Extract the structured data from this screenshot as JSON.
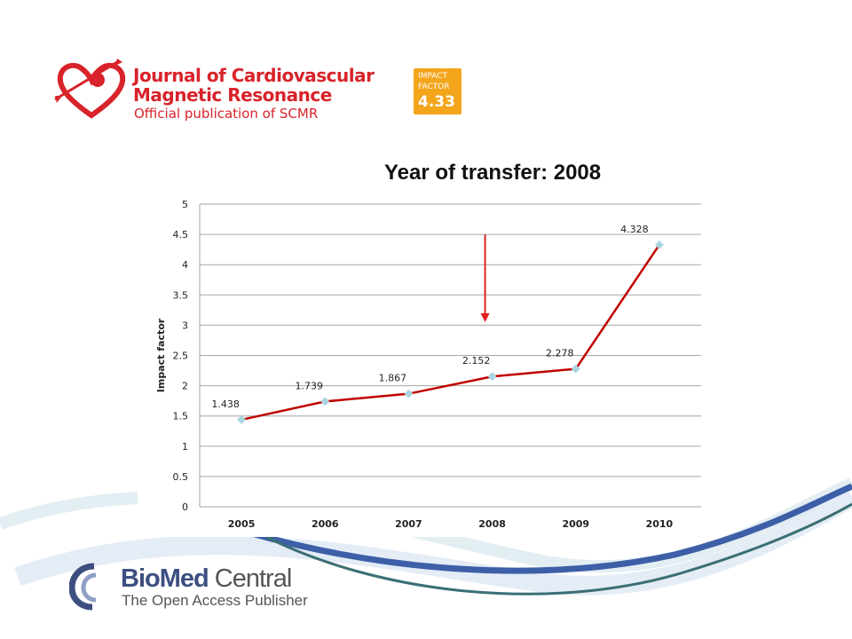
{
  "header": {
    "journal_line1": "Journal of Cardiovascular",
    "journal_line2": "Magnetic Resonance",
    "journal_subtitle": "Official publication of SCMR",
    "impact_badge_line1": "IMPACT",
    "impact_badge_line2": "FACTOR",
    "impact_badge_value": "4.33"
  },
  "footer": {
    "publisher_bold": "BioMed",
    "publisher_regular": " Central",
    "publisher_tagline": "The Open Access Publisher"
  },
  "colors": {
    "brand_red": "#d8232a",
    "badge_orange": "#f3a51b",
    "line_red": "#c00000",
    "marker": "#a8d4e0",
    "arrow_red": "#e02020",
    "swoosh_blue": "#3d5fa8",
    "swoosh_teal": "#3a6f74"
  },
  "chart_data": {
    "type": "line",
    "title": "Year of transfer: 2008",
    "xlabel": "",
    "ylabel": "Impact factor",
    "categories": [
      "2005",
      "2006",
      "2007",
      "2008",
      "2009",
      "2010"
    ],
    "values": [
      1.438,
      1.739,
      1.867,
      2.152,
      2.278,
      4.328
    ],
    "data_labels": [
      "1.438",
      "1.739",
      "1.867",
      "2.152",
      "2.278",
      "4.328"
    ],
    "ylim": [
      0,
      5
    ],
    "yticks": [
      "0",
      "0.5",
      "1",
      "1.5",
      "2",
      "2.5",
      "3",
      "3.5",
      "4",
      "4.5",
      "5"
    ],
    "grid": true,
    "annotation": {
      "type": "arrow",
      "at_category": "2008",
      "from_value": 4.5,
      "to_value": 3.05
    }
  }
}
